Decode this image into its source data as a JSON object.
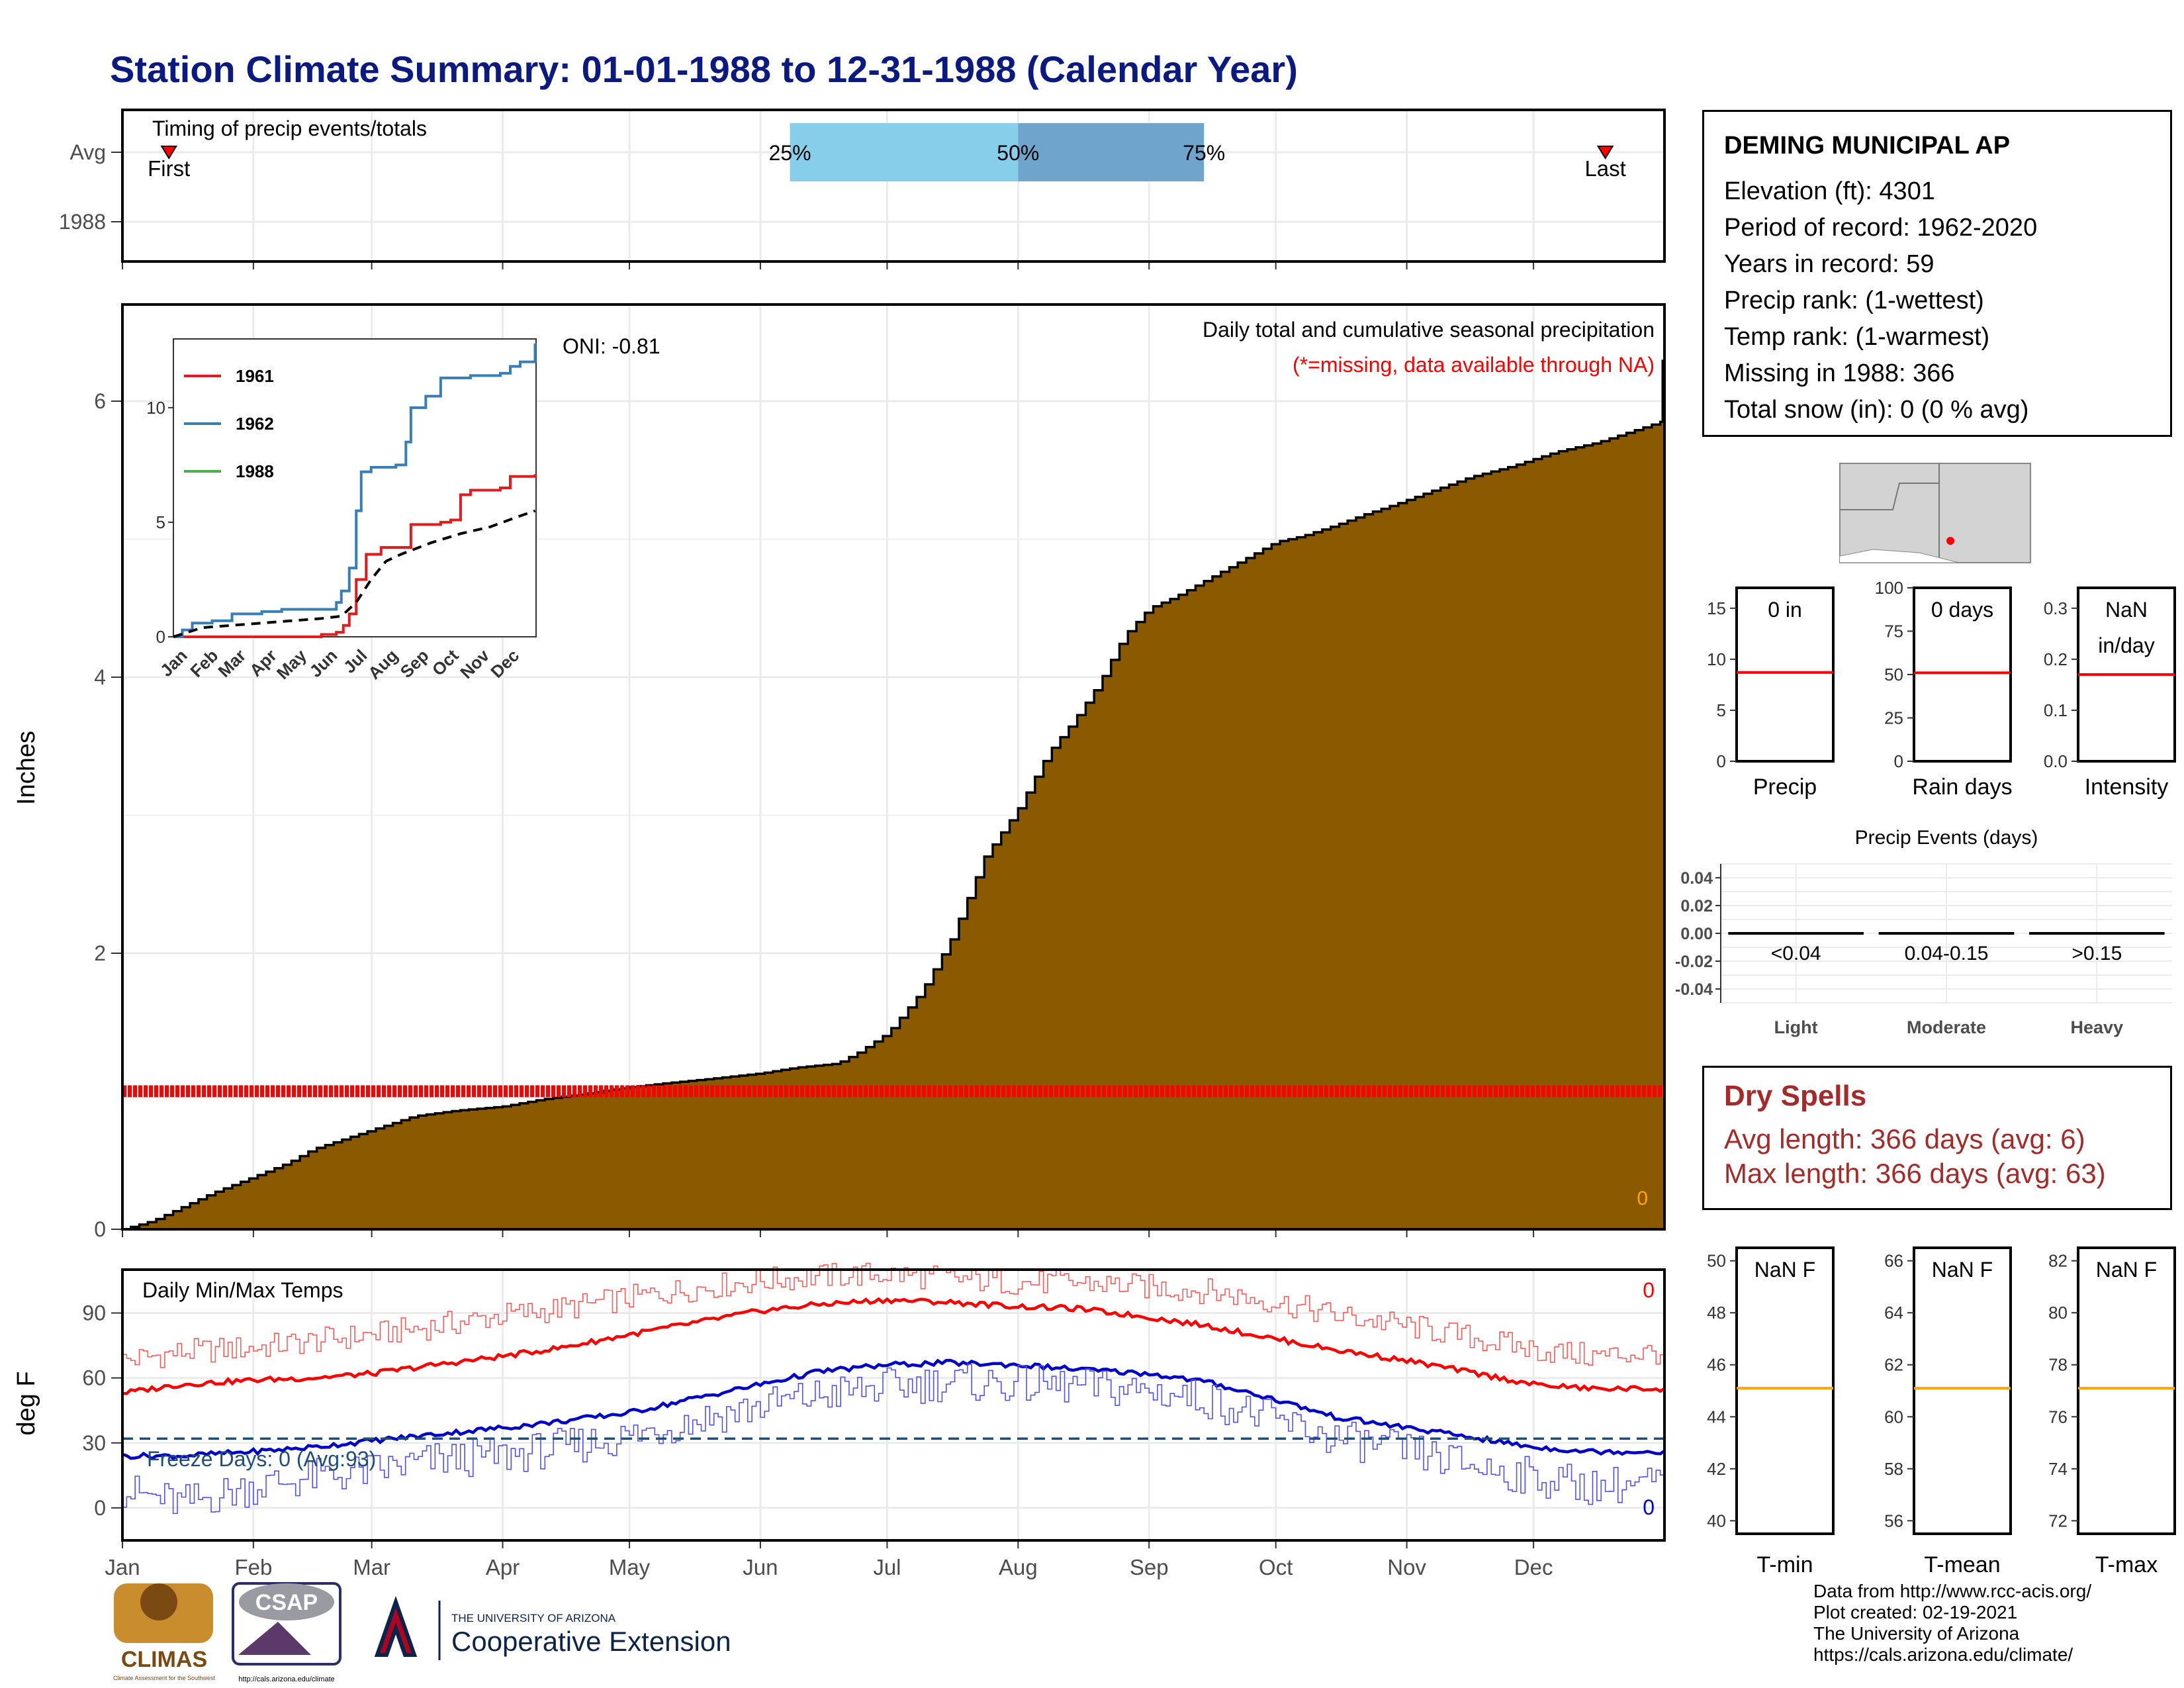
{
  "page": {
    "title": "Station Climate Summary: 01-01-1988 to 12-31-1988 (Calendar Year)"
  },
  "station": {
    "name": "DEMING MUNICIPAL AP",
    "elevation": "Elevation (ft): 4301",
    "period": "Period of record: 1962-2020",
    "years": "Years in record: 59",
    "precip_rank": "Precip rank:  (1-wettest)",
    "temp_rank": "Temp rank:  (1-warmest)",
    "missing": "Missing in 1988: 366",
    "snow": "Total snow (in): 0 (0 % avg)"
  },
  "dry_spells": {
    "title": "Dry Spells",
    "avg": "Avg length: 366 days (avg: 6)",
    "max": "Max length: 366 days (avg: 63)"
  },
  "credits": {
    "line1": "Data from http://www.rcc-acis.org/",
    "line2": "Plot created: 02-19-2021",
    "line3": "The University of Arizona",
    "line4": "https://cals.arizona.edu/climate/"
  },
  "logos": {
    "climas": "CLIMAS",
    "climas_sub": "Climate Assessment for the Southwest",
    "csap": "CSAP",
    "csap_url": "http://cals.arizona.edu/climate",
    "ua_small": "THE UNIVERSITY OF ARIZONA",
    "ua_big": "Cooperative Extension"
  },
  "colors": {
    "title": "#0b1a80",
    "precip_fill": "#8b5a00",
    "missing": "#ff0000",
    "q_light": "#87ceeb",
    "q_dark": "#6fa5cc",
    "tmax": "#ff0000",
    "tmin": "#0000cc",
    "freeze": "#1f4e79",
    "orange": "#ffa500",
    "dry": "#a52a2a"
  },
  "chart_data": [
    {
      "id": "timing",
      "type": "bar",
      "title": "Timing of precip events/totals",
      "rows": [
        "Avg",
        "1988"
      ],
      "quantiles": [
        {
          "label": "25%",
          "doy": 159
        },
        {
          "label": "50%",
          "doy": 213
        },
        {
          "label": "75%",
          "doy": 257
        }
      ],
      "first": {
        "label": "First",
        "doy": 12
      },
      "last": {
        "label": "Last",
        "doy": 352
      }
    },
    {
      "id": "cumulative",
      "type": "area",
      "title": "Daily total and cumulative seasonal precipitation",
      "subtitle": "(*=missing, data available through NA)",
      "ylabel": "Inches",
      "ylim": [
        0,
        6.7
      ],
      "yticks": [
        0,
        2,
        4,
        6
      ],
      "oni": "ONI: -0.81",
      "missing_level": 1.0,
      "corner_value": "0",
      "series": [
        {
          "x": [
            1,
            8,
            15,
            22,
            32,
            40,
            46,
            55,
            60,
            70,
            80,
            91,
            100,
            110,
            121,
            130,
            140,
            152,
            160,
            170,
            175,
            182,
            190,
            197,
            205,
            213,
            220,
            226,
            232,
            238,
            244,
            250,
            256,
            262,
            268,
            274,
            280,
            288,
            295,
            302,
            310,
            320,
            330,
            340,
            350,
            360,
            365
          ],
          "values": [
            0.0,
            0.06,
            0.16,
            0.26,
            0.38,
            0.48,
            0.58,
            0.67,
            0.72,
            0.82,
            0.86,
            0.89,
            0.94,
            0.98,
            1.03,
            1.06,
            1.09,
            1.13,
            1.17,
            1.2,
            1.28,
            1.42,
            1.72,
            2.1,
            2.7,
            3.05,
            3.45,
            3.68,
            3.95,
            4.3,
            4.5,
            4.58,
            4.68,
            4.78,
            4.88,
            4.98,
            5.02,
            5.1,
            5.18,
            5.25,
            5.34,
            5.45,
            5.53,
            5.63,
            5.7,
            5.8,
            5.85
          ]
        }
      ]
    },
    {
      "id": "inset",
      "type": "line",
      "ylim": [
        0,
        13
      ],
      "yticks": [
        0,
        5,
        10
      ],
      "months": [
        "Jan",
        "Feb",
        "Mar",
        "Apr",
        "May",
        "Jun",
        "Jul",
        "Aug",
        "Sep",
        "Oct",
        "Nov",
        "Dec"
      ],
      "series": [
        {
          "name": "1961",
          "color": "#e41a1c",
          "x": [
            1,
            120,
            150,
            165,
            172,
            178,
            185,
            195,
            210,
            240,
            270,
            280,
            290,
            300,
            330,
            340,
            365
          ],
          "values": [
            0,
            0,
            0.1,
            0.2,
            0.5,
            1.0,
            2.5,
            3.6,
            3.9,
            4.9,
            5.0,
            5.1,
            6.2,
            6.4,
            6.5,
            7.0,
            7.1
          ]
        },
        {
          "name": "1962",
          "color": "#377eb8",
          "x": [
            1,
            10,
            20,
            40,
            60,
            90,
            110,
            130,
            150,
            165,
            170,
            178,
            185,
            190,
            200,
            225,
            235,
            240,
            255,
            270,
            300,
            330,
            340,
            350,
            365
          ],
          "values": [
            0,
            0.3,
            0.6,
            0.7,
            1.0,
            1.1,
            1.2,
            1.2,
            1.2,
            1.5,
            2.0,
            3.0,
            5.5,
            7.2,
            7.4,
            7.5,
            8.5,
            10.0,
            10.5,
            11.3,
            11.4,
            11.5,
            11.8,
            12.0,
            12.8
          ]
        },
        {
          "name": "1988",
          "color": "#4daf4a",
          "x": [],
          "values": []
        },
        {
          "name": "",
          "color": "#000000",
          "dashed": true,
          "x": [
            1,
            30,
            60,
            90,
            120,
            150,
            170,
            185,
            200,
            215,
            230,
            260,
            290,
            320,
            345,
            365
          ],
          "values": [
            0,
            0.4,
            0.5,
            0.6,
            0.7,
            0.8,
            0.9,
            1.5,
            2.5,
            3.3,
            3.6,
            4.1,
            4.5,
            4.8,
            5.2,
            5.5
          ]
        }
      ]
    },
    {
      "id": "mini_precip",
      "type": "bar",
      "ylim": [
        0,
        17
      ],
      "yticks": [
        0,
        5,
        10,
        15
      ],
      "avg": 8.7,
      "value_text": "0 in",
      "label": "Precip"
    },
    {
      "id": "mini_raindays",
      "type": "bar",
      "ylim": [
        0,
        100
      ],
      "yticks": [
        0,
        25,
        50,
        75,
        100
      ],
      "avg": 51,
      "value_text": "0 days",
      "label": "Rain days"
    },
    {
      "id": "mini_intensity",
      "type": "bar",
      "ylim": [
        0,
        0.34
      ],
      "yticks": [
        0.0,
        0.1,
        0.2,
        0.3
      ],
      "avg": 0.17,
      "value_text": "NaN",
      "value_text2": "in/day",
      "label": "Intensity"
    },
    {
      "id": "events",
      "type": "bar",
      "title": "Precip Events (days)",
      "categories": [
        "Light",
        "Moderate",
        "Heavy"
      ],
      "bins": [
        "<0.04",
        "0.04-0.15",
        ">0.15"
      ],
      "values": [
        0,
        0,
        0
      ],
      "ylim": [
        -0.05,
        0.05
      ],
      "yticks": [
        -0.04,
        -0.02,
        0.0,
        0.02,
        0.04
      ]
    },
    {
      "id": "temps",
      "type": "line",
      "title": "Daily Min/Max Temps",
      "ylabel": "deg F",
      "ylim": [
        -15,
        110
      ],
      "yticks": [
        0,
        30,
        60,
        90
      ],
      "freeze_level": 32,
      "freeze_text": "Freeze Days: 0 (Avg:93)",
      "max_count": "0",
      "min_count": "0",
      "months": [
        "Jan",
        "Feb",
        "Mar",
        "Apr",
        "May",
        "Jun",
        "Jul",
        "Aug",
        "Sep",
        "Oct",
        "Nov",
        "Dec"
      ],
      "series": [
        {
          "name": "",
          "kind": "avg_max",
          "x": [
            1,
            15,
            32,
            46,
            60,
            75,
            91,
            105,
            121,
            135,
            152,
            166,
            182,
            196,
            213,
            227,
            244,
            258,
            274,
            288,
            305,
            319,
            335,
            349,
            365
          ],
          "values": [
            53,
            57,
            59,
            60,
            62,
            66,
            70,
            74,
            80,
            85,
            91,
            94,
            96,
            95,
            93,
            92,
            88,
            84,
            78,
            73,
            68,
            63,
            57,
            55,
            55
          ]
        },
        {
          "name": "",
          "kind": "rec_max",
          "x": [
            1,
            15,
            32,
            46,
            60,
            75,
            91,
            105,
            121,
            135,
            152,
            166,
            182,
            196,
            213,
            227,
            244,
            258,
            274,
            288,
            305,
            319,
            335,
            349,
            365
          ],
          "values": [
            68,
            72,
            74,
            77,
            80,
            84,
            89,
            92,
            97,
            101,
            105,
            107,
            108,
            106,
            104,
            104,
            102,
            100,
            95,
            89,
            84,
            79,
            73,
            70,
            72
          ]
        },
        {
          "name": "",
          "kind": "avg_min",
          "x": [
            1,
            15,
            32,
            46,
            60,
            75,
            91,
            105,
            121,
            135,
            152,
            166,
            182,
            196,
            213,
            227,
            244,
            258,
            274,
            288,
            305,
            319,
            335,
            349,
            365
          ],
          "values": [
            24,
            24,
            26,
            28,
            31,
            34,
            37,
            40,
            44,
            50,
            57,
            63,
            66,
            67,
            66,
            64,
            62,
            58,
            50,
            42,
            37,
            33,
            28,
            26,
            26
          ]
        },
        {
          "name": "",
          "kind": "rec_min",
          "x": [
            1,
            15,
            32,
            46,
            60,
            75,
            91,
            105,
            121,
            135,
            152,
            166,
            182,
            196,
            213,
            227,
            244,
            258,
            274,
            288,
            305,
            319,
            335,
            349,
            365
          ],
          "values": [
            8,
            2,
            10,
            14,
            17,
            22,
            24,
            28,
            33,
            40,
            47,
            52,
            56,
            58,
            57,
            56,
            54,
            50,
            40,
            32,
            26,
            20,
            14,
            10,
            12
          ]
        }
      ]
    },
    {
      "id": "mini_tmin",
      "type": "bar",
      "ylim": [
        39.5,
        50.5
      ],
      "yticks": [
        40,
        42,
        44,
        46,
        48,
        50
      ],
      "avg": 45.1,
      "value_text": "NaN F",
      "label": "T-min"
    },
    {
      "id": "mini_tmean",
      "type": "bar",
      "ylim": [
        55.5,
        66.5
      ],
      "yticks": [
        56,
        58,
        60,
        62,
        64,
        66
      ],
      "avg": 61.1,
      "value_text": "NaN F",
      "label": "T-mean"
    },
    {
      "id": "mini_tmax",
      "type": "bar",
      "ylim": [
        71.5,
        82.5
      ],
      "yticks": [
        72,
        74,
        76,
        78,
        80,
        82
      ],
      "avg": 77.1,
      "value_text": "NaN F",
      "label": "T-max"
    }
  ]
}
